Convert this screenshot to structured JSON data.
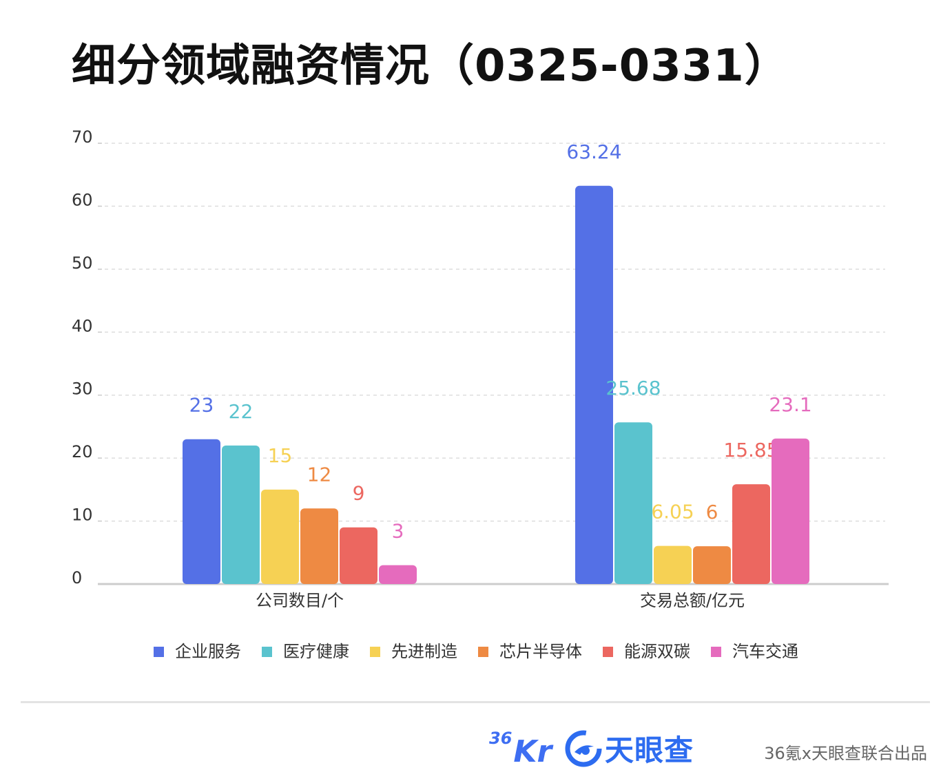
{
  "title": "细分领域融资情况（0325-0331）",
  "chart_data": {
    "type": "bar",
    "categories": [
      "公司数目/个",
      "交易总额/亿元"
    ],
    "series": [
      {
        "name": "企业服务",
        "color": "#5470e6",
        "values": [
          23,
          63.24
        ],
        "labels": [
          "23",
          "63.24"
        ]
      },
      {
        "name": "医疗健康",
        "color": "#5ac3ce",
        "values": [
          22,
          25.68
        ],
        "labels": [
          "22",
          "25.68"
        ]
      },
      {
        "name": "先进制造",
        "color": "#f6d154",
        "values": [
          15,
          6.05
        ],
        "labels": [
          "15",
          "6.05"
        ]
      },
      {
        "name": "芯片半导体",
        "color": "#ee8a43",
        "values": [
          12,
          6
        ],
        "labels": [
          "12",
          "6"
        ]
      },
      {
        "name": "能源双碳",
        "color": "#ec6760",
        "values": [
          9,
          15.85
        ],
        "labels": [
          "9",
          "15.85"
        ]
      },
      {
        "name": "汽车交通",
        "color": "#e56bbd",
        "values": [
          3,
          23.1
        ],
        "labels": [
          "3",
          "23.1"
        ]
      }
    ],
    "ylim": [
      0,
      70
    ],
    "yticks": [
      0,
      10,
      20,
      30,
      40,
      50,
      60,
      70
    ],
    "grid": true,
    "legend_position": "bottom"
  },
  "footer": {
    "logo_36kr_sup": "36",
    "logo_36kr_main": "Kr",
    "logo_tianyancha": "天眼查",
    "credit": "36氪x天眼查联合出品"
  }
}
